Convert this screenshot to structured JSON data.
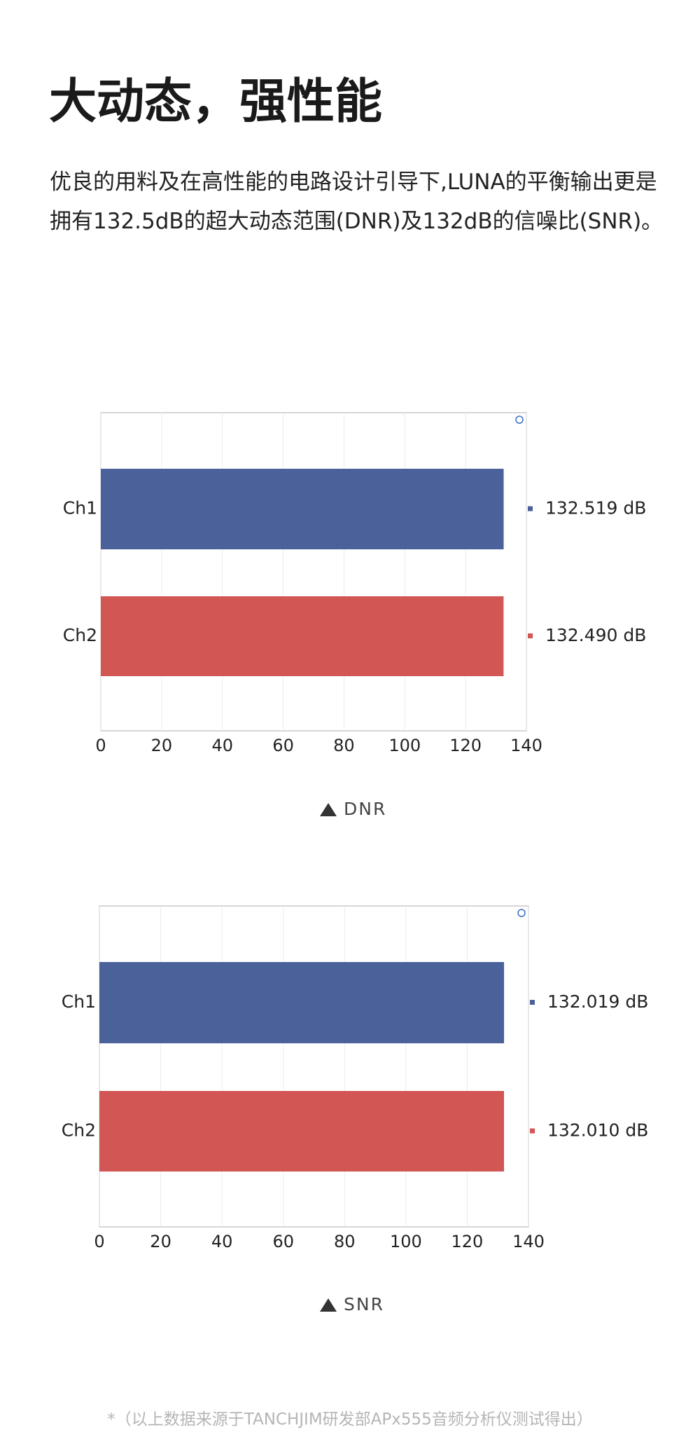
{
  "heading": "大动态，强性能",
  "paragraph": "优良的用料及在高性能的电路设计引导下,LUNA的平衡输出更是拥有132.5dB的超大动态范围(DNR)及132dB的信噪比(SNR)。",
  "footnote": "*（以上数据来源于TANCHJIM研发部APx555音频分析仪测试得出）",
  "chart_data": [
    {
      "type": "hbar",
      "caption": "DNR",
      "categories": [
        "Ch1",
        "Ch2"
      ],
      "values": [
        132.519,
        132.49
      ],
      "value_labels": [
        "132.519 dB",
        "132.490 dB"
      ],
      "colors": [
        "#4a6299",
        "#d15654"
      ],
      "xlim": [
        0,
        140
      ],
      "xticks": [
        0,
        20,
        40,
        60,
        80,
        100,
        120,
        140
      ],
      "grid": true
    },
    {
      "type": "hbar",
      "caption": "SNR",
      "categories": [
        "Ch1",
        "Ch2"
      ],
      "values": [
        132.019,
        132.01
      ],
      "value_labels": [
        "132.019 dB",
        "132.010 dB"
      ],
      "colors": [
        "#4a6299",
        "#d15654"
      ],
      "xlim": [
        0,
        140
      ],
      "xticks": [
        0,
        20,
        40,
        60,
        80,
        100,
        120,
        140
      ],
      "grid": true
    }
  ]
}
